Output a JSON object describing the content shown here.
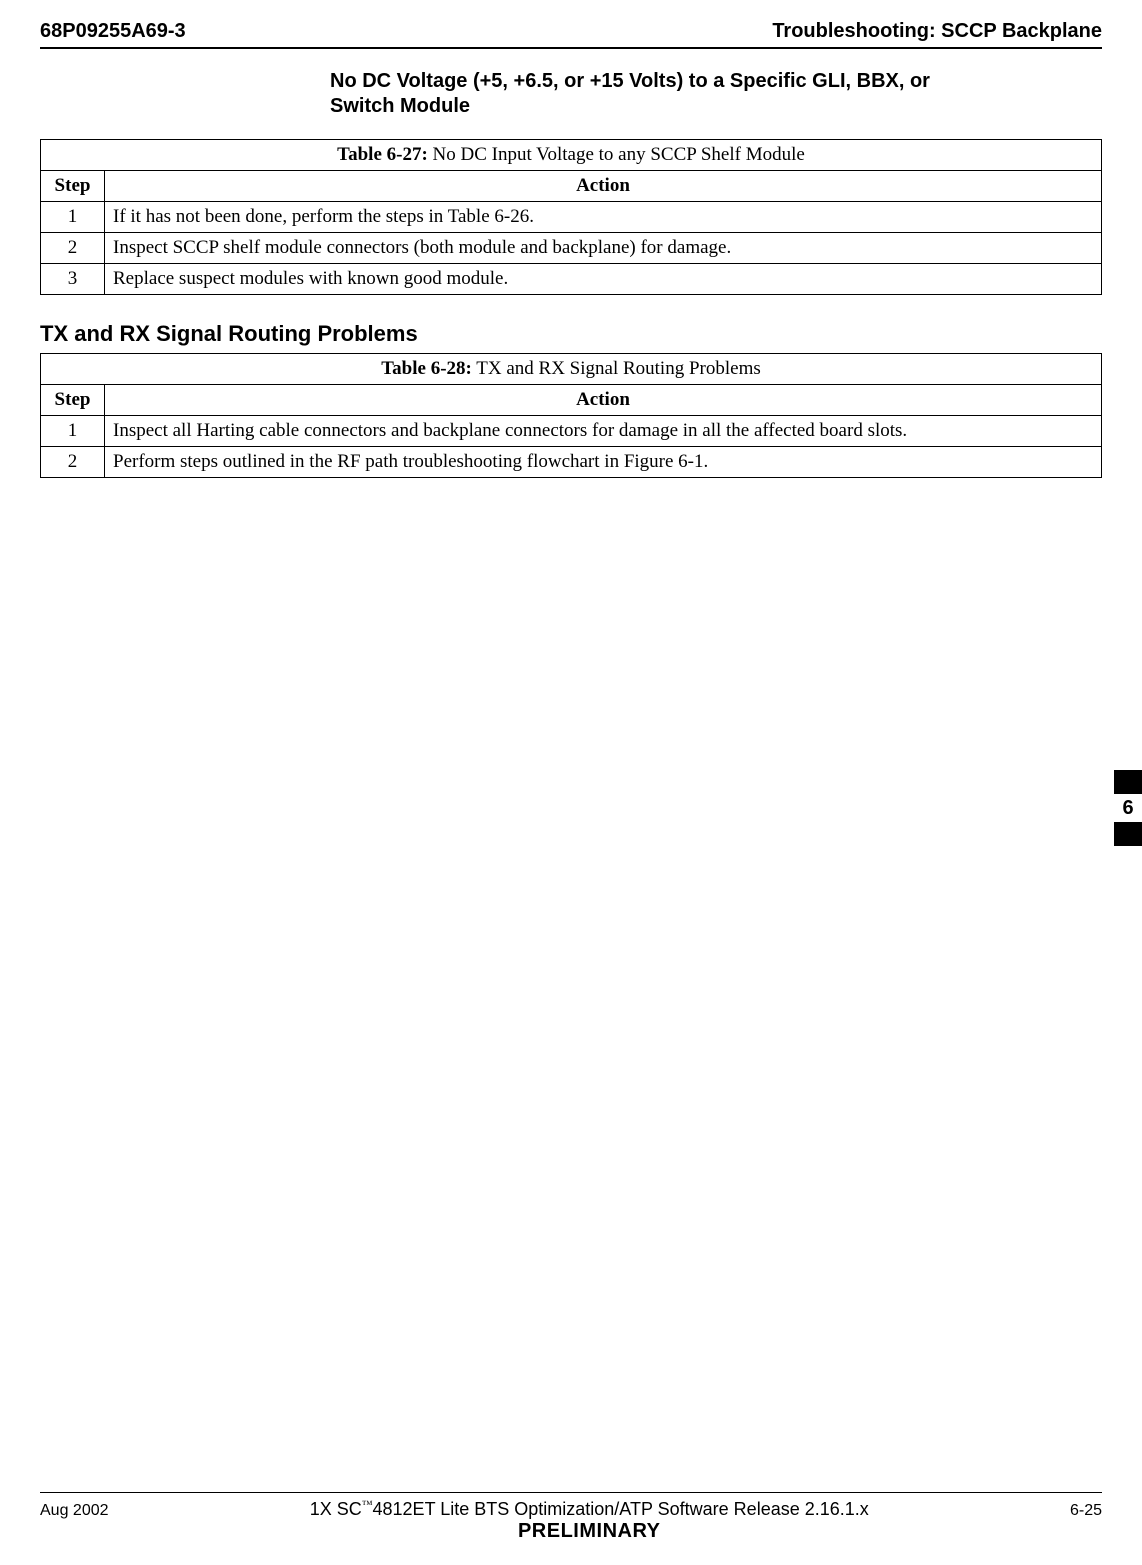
{
  "header": {
    "doc_number": "68P09255A69-3",
    "title": "Troubleshooting: SCCP Backplane"
  },
  "subheading": "No DC Voltage (+5, +6.5, or +15 Volts) to a Specific GLI, BBX, or Switch Module",
  "table627": {
    "label": "Table 6-27:",
    "caption": " No DC Input Voltage to any SCCP Shelf Module",
    "col1": "Step",
    "col2": "Action",
    "rows": [
      {
        "step": "1",
        "action": "If it has not been done, perform the steps in Table 6-26."
      },
      {
        "step": "2",
        "action": "Inspect SCCP shelf module connectors (both module and backplane) for damage."
      },
      {
        "step": "3",
        "action": "Replace suspect modules with known good module."
      }
    ]
  },
  "section2": "TX and RX Signal Routing Problems",
  "table628": {
    "label": "Table 6-28:",
    "caption": " TX and RX Signal Routing Problems",
    "col1": "Step",
    "col2": "Action",
    "rows": [
      {
        "step": "1",
        "action": "Inspect all Harting cable connectors and backplane connectors for damage in all the affected board slots."
      },
      {
        "step": "2",
        "action": "Perform steps outlined in the RF path troubleshooting flowchart in Figure 6-1."
      }
    ]
  },
  "tab": "6",
  "footer": {
    "left": "Aug 2002",
    "center1a": "1X SC",
    "center1b": "4812ET Lite BTS Optimization/ATP Software Release 2.16.1.x",
    "center2": "PRELIMINARY",
    "right": "6-25"
  }
}
